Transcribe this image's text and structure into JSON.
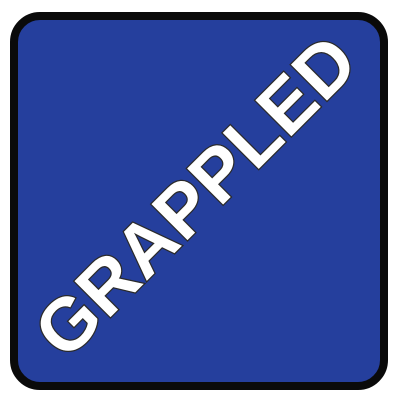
{
  "badge": {
    "label": "GRAPPLED",
    "background_color": "#253f9d",
    "border_color": "#0a0a0a",
    "text_color": "#ffffff"
  }
}
